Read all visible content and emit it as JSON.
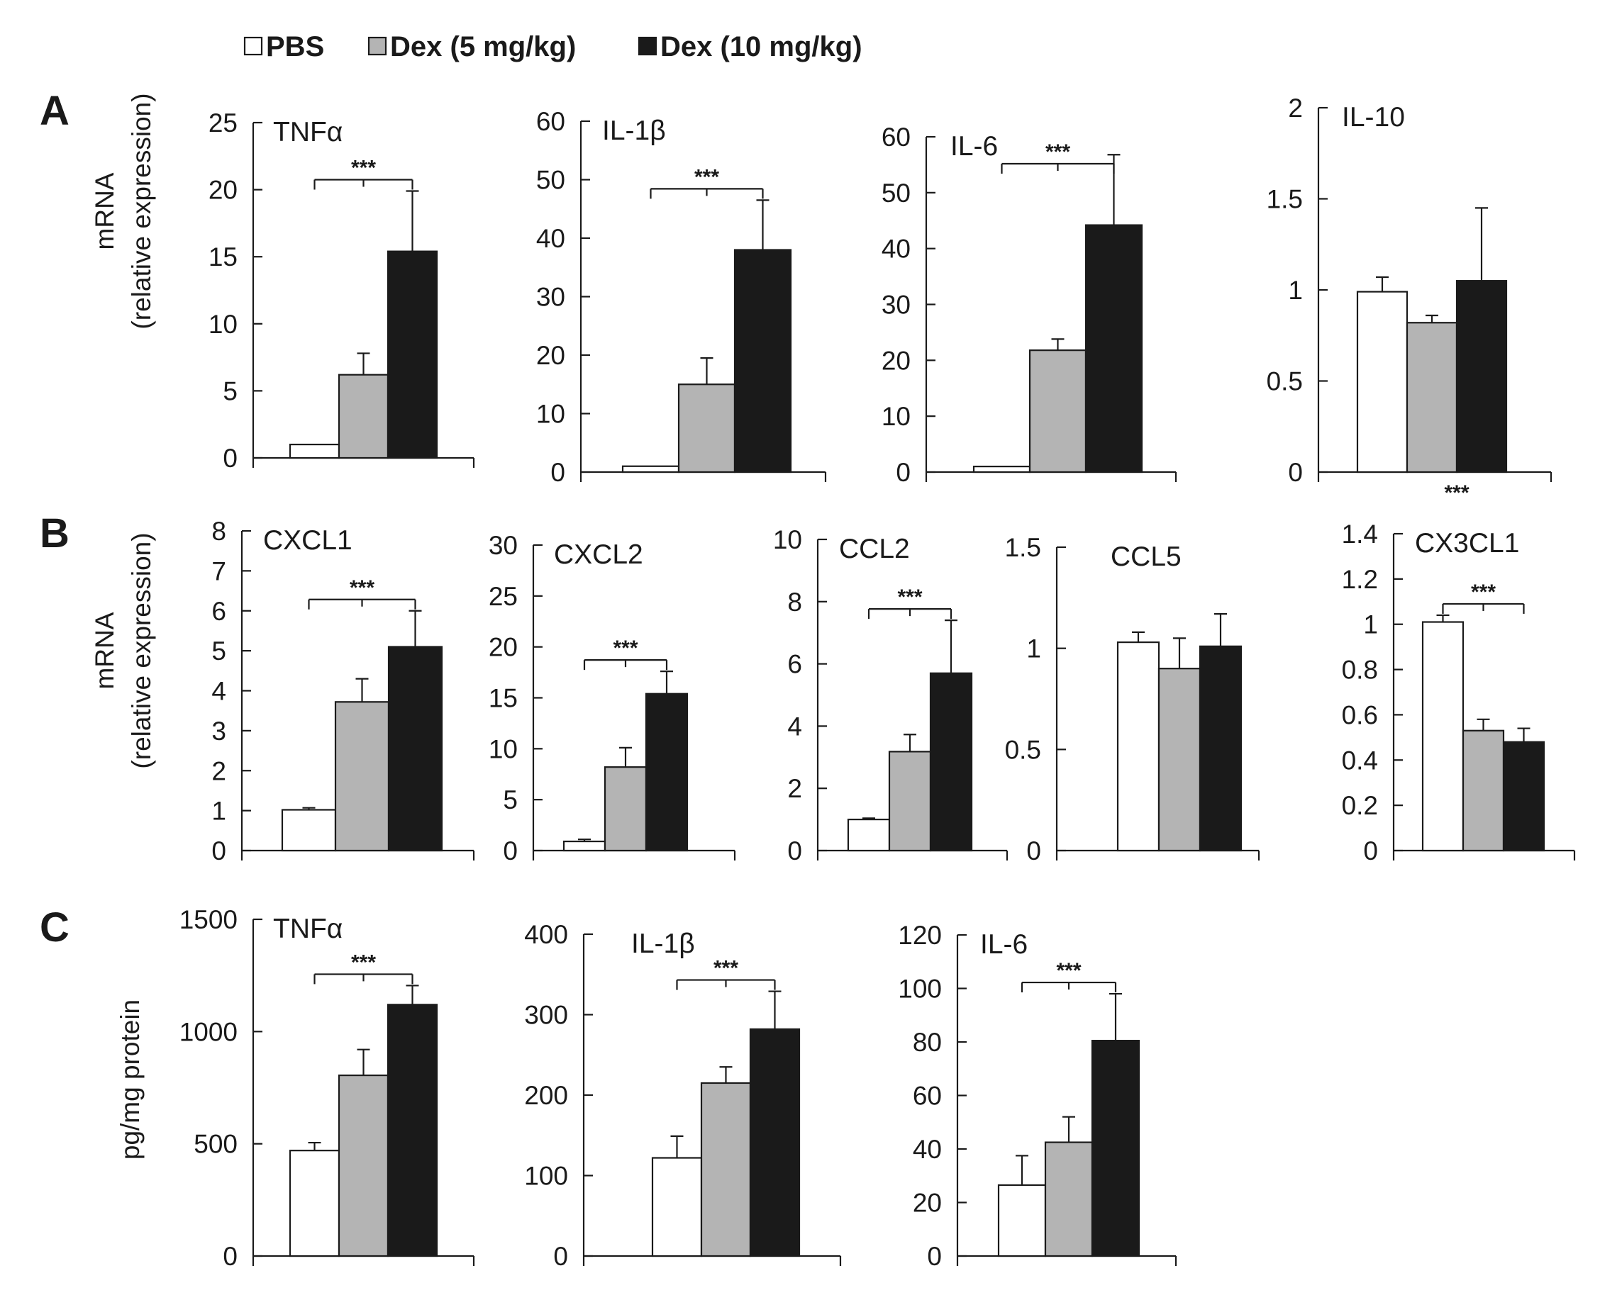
{
  "legend": [
    {
      "label": "PBS",
      "color": "#ffffff"
    },
    {
      "label": "Dex (5 mg/kg)",
      "color": "#b4b4b4"
    },
    {
      "label": "Dex (10 mg/kg)",
      "color": "#1a1a1a"
    }
  ],
  "panels": [
    {
      "letter": "A",
      "ylabel_lines": [
        "mRNA",
        "(relative expression)"
      ]
    },
    {
      "letter": "B",
      "ylabel_lines": [
        "mRNA",
        "(relative expression)"
      ]
    },
    {
      "letter": "C",
      "ylabel_lines": [
        "pg/mg protein"
      ]
    }
  ],
  "significance_label": "***",
  "chart_data": [
    {
      "type": "bar",
      "panel": "A",
      "title": "TNFα",
      "categories": [
        "PBS",
        "Dex (5 mg/kg)",
        "Dex (10 mg/kg)"
      ],
      "values": [
        1,
        6.2,
        15.4
      ],
      "errors": [
        0,
        1.6,
        4.5
      ],
      "ylim": [
        0,
        25
      ],
      "ticks": [
        0,
        5,
        10,
        15,
        20,
        25
      ],
      "significance": {
        "label": "***",
        "from": 0,
        "to": 2,
        "position": "above"
      }
    },
    {
      "type": "bar",
      "panel": "A",
      "title": "IL-1β",
      "categories": [
        "PBS",
        "Dex (5 mg/kg)",
        "Dex (10 mg/kg)"
      ],
      "values": [
        1,
        15,
        38
      ],
      "errors": [
        0,
        4.5,
        8.5
      ],
      "ylim": [
        0,
        60
      ],
      "ticks": [
        0,
        10,
        20,
        30,
        40,
        50,
        60
      ],
      "significance": {
        "label": "***",
        "from": 0,
        "to": 2,
        "position": "above"
      }
    },
    {
      "type": "bar",
      "panel": "A",
      "title": "IL-6",
      "categories": [
        "PBS",
        "Dex (5 mg/kg)",
        "Dex (10 mg/kg)"
      ],
      "values": [
        1,
        21.8,
        44.2
      ],
      "errors": [
        0,
        2,
        12.6
      ],
      "ylim": [
        0,
        60
      ],
      "ticks": [
        0,
        10,
        20,
        30,
        40,
        50,
        60
      ],
      "significance": {
        "label": "***",
        "from": 0,
        "to": 2,
        "position": "above"
      }
    },
    {
      "type": "bar",
      "panel": "A",
      "title": "IL-10",
      "categories": [
        "PBS",
        "Dex (5 mg/kg)",
        "Dex (10 mg/kg)"
      ],
      "values": [
        0.99,
        0.82,
        1.05
      ],
      "errors": [
        0.08,
        0.04,
        0.4
      ],
      "ylim": [
        0,
        2
      ],
      "ticks": [
        0,
        0.5,
        1,
        1.5,
        2
      ],
      "significance": {
        "label": "***",
        "from": 0,
        "to": 2,
        "position": "below"
      }
    },
    {
      "type": "bar",
      "panel": "B",
      "title": "CXCL1",
      "categories": [
        "PBS",
        "Dex (5 mg/kg)",
        "Dex (10 mg/kg)"
      ],
      "values": [
        1.02,
        3.72,
        5.1
      ],
      "errors": [
        0.05,
        0.58,
        0.9
      ],
      "ylim": [
        0,
        8
      ],
      "ticks": [
        0,
        1,
        2,
        3,
        4,
        5,
        6,
        7,
        8
      ],
      "significance": {
        "label": "***",
        "from": 0,
        "to": 2,
        "position": "above"
      }
    },
    {
      "type": "bar",
      "panel": "B",
      "title": "CXCL2",
      "categories": [
        "PBS",
        "Dex (5 mg/kg)",
        "Dex (10 mg/kg)"
      ],
      "values": [
        0.9,
        8.2,
        15.4
      ],
      "errors": [
        0.2,
        1.9,
        2.2
      ],
      "ylim": [
        0,
        30
      ],
      "ticks": [
        0,
        5,
        10,
        15,
        20,
        25,
        30
      ],
      "significance": {
        "label": "***",
        "from": 0,
        "to": 2,
        "position": "above"
      }
    },
    {
      "type": "bar",
      "panel": "B",
      "title": "CCL2",
      "categories": [
        "PBS",
        "Dex (5 mg/kg)",
        "Dex (10 mg/kg)"
      ],
      "values": [
        1,
        3.18,
        5.7
      ],
      "errors": [
        0.04,
        0.55,
        1.7
      ],
      "ylim": [
        0,
        10
      ],
      "ticks": [
        0,
        2,
        4,
        6,
        8,
        10
      ],
      "significance": {
        "label": "***",
        "from": 0,
        "to": 2,
        "position": "above"
      }
    },
    {
      "type": "bar",
      "panel": "B",
      "title": "CCL5",
      "categories": [
        "PBS",
        "Dex (5 mg/kg)",
        "Dex (10 mg/kg)"
      ],
      "values": [
        1.03,
        0.9,
        1.01
      ],
      "errors": [
        0.05,
        0.15,
        0.16
      ],
      "ylim": [
        0,
        1.5
      ],
      "ticks": [
        0,
        0.5,
        1,
        1.5
      ],
      "significance": null
    },
    {
      "type": "bar",
      "panel": "B",
      "title": "CX3CL1",
      "categories": [
        "PBS",
        "Dex (5 mg/kg)",
        "Dex (10 mg/kg)"
      ],
      "values": [
        1.01,
        0.53,
        0.48
      ],
      "errors": [
        0.03,
        0.05,
        0.06
      ],
      "ylim": [
        0,
        1.4
      ],
      "ticks": [
        0,
        0.2,
        0.4,
        0.6,
        0.8,
        1,
        1.2,
        1.4
      ],
      "significance": {
        "label": "***",
        "from": 0,
        "to": 2,
        "position": "above"
      }
    },
    {
      "type": "bar",
      "panel": "C",
      "title": "TNFα",
      "categories": [
        "PBS",
        "Dex (5 mg/kg)",
        "Dex (10 mg/kg)"
      ],
      "values": [
        470,
        805,
        1120
      ],
      "errors": [
        35,
        115,
        85
      ],
      "ylim": [
        0,
        1500
      ],
      "ticks": [
        0,
        500,
        1000,
        1500
      ],
      "significance": {
        "label": "***",
        "from": 0,
        "to": 2,
        "position": "above"
      }
    },
    {
      "type": "bar",
      "panel": "C",
      "title": "IL-1β",
      "categories": [
        "PBS",
        "Dex (5 mg/kg)",
        "Dex (10 mg/kg)"
      ],
      "values": [
        122,
        215,
        282
      ],
      "errors": [
        27,
        20,
        47
      ],
      "ylim": [
        0,
        400
      ],
      "ticks": [
        0,
        100,
        200,
        300,
        400
      ],
      "significance": {
        "label": "***",
        "from": 0,
        "to": 2,
        "position": "above"
      }
    },
    {
      "type": "bar",
      "panel": "C",
      "title": "IL-6",
      "categories": [
        "PBS",
        "Dex (5 mg/kg)",
        "Dex (10 mg/kg)"
      ],
      "values": [
        26.5,
        42.5,
        80.5
      ],
      "errors": [
        11,
        9.5,
        17.5
      ],
      "ylim": [
        0,
        120
      ],
      "ticks": [
        0,
        20,
        40,
        60,
        80,
        100,
        120
      ],
      "significance": {
        "label": "***",
        "from": 0,
        "to": 2,
        "position": "above"
      }
    }
  ]
}
